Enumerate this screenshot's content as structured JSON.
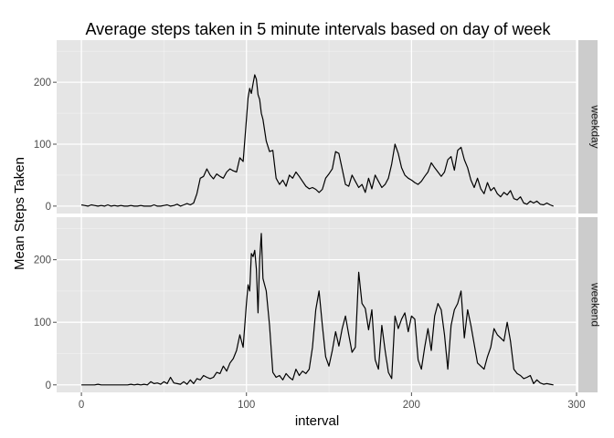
{
  "chart_data": {
    "type": "line",
    "title": "Average steps taken in 5 minute intervals based on day of week",
    "xlabel": "interval",
    "ylabel": "Mean Steps Taken",
    "xlim": [
      -15,
      300
    ],
    "ylim": [
      -12,
      268
    ],
    "x_ticks": [
      0,
      100,
      200,
      300
    ],
    "y_ticks": [
      0,
      100,
      200
    ],
    "grid": true,
    "facet_strip_position": "right",
    "line_color": "#000000",
    "panel_background": "#e5e5e5",
    "strip_background": "#cccccc",
    "panels": [
      {
        "label": "weekday",
        "x": [
          0,
          2,
          4,
          6,
          8,
          10,
          12,
          14,
          16,
          18,
          20,
          22,
          24,
          26,
          28,
          30,
          32,
          34,
          36,
          38,
          40,
          42,
          44,
          46,
          48,
          50,
          52,
          54,
          56,
          58,
          60,
          62,
          64,
          66,
          68,
          70,
          72,
          74,
          76,
          78,
          80,
          82,
          84,
          86,
          88,
          90,
          92,
          94,
          96,
          98,
          100,
          101,
          102,
          103,
          104,
          105,
          106,
          107,
          108,
          109,
          110,
          112,
          114,
          116,
          118,
          120,
          122,
          124,
          126,
          128,
          130,
          132,
          134,
          136,
          138,
          140,
          142,
          144,
          146,
          148,
          150,
          152,
          154,
          156,
          158,
          160,
          162,
          164,
          166,
          168,
          170,
          172,
          174,
          176,
          178,
          180,
          182,
          184,
          186,
          188,
          190,
          192,
          194,
          196,
          198,
          200,
          202,
          204,
          206,
          208,
          210,
          212,
          214,
          216,
          218,
          220,
          222,
          224,
          226,
          228,
          230,
          232,
          234,
          236,
          238,
          240,
          242,
          244,
          246,
          248,
          250,
          252,
          254,
          256,
          258,
          260,
          262,
          264,
          266,
          268,
          270,
          272,
          274,
          276,
          278,
          280,
          282,
          284,
          286
        ],
        "y": [
          2,
          1,
          0,
          2,
          1,
          0,
          1,
          0,
          2,
          0,
          1,
          0,
          1,
          0,
          0,
          1,
          0,
          0,
          1,
          0,
          0,
          0,
          2,
          0,
          0,
          1,
          2,
          0,
          1,
          3,
          0,
          2,
          4,
          2,
          5,
          20,
          45,
          48,
          60,
          50,
          44,
          52,
          48,
          45,
          55,
          60,
          57,
          55,
          78,
          72,
          140,
          175,
          190,
          182,
          198,
          212,
          205,
          180,
          172,
          150,
          140,
          105,
          88,
          90,
          45,
          35,
          42,
          32,
          50,
          45,
          55,
          48,
          40,
          32,
          28,
          30,
          27,
          22,
          27,
          45,
          52,
          60,
          88,
          85,
          60,
          35,
          32,
          50,
          40,
          30,
          35,
          22,
          45,
          28,
          50,
          40,
          30,
          35,
          45,
          68,
          100,
          85,
          62,
          50,
          45,
          42,
          38,
          35,
          40,
          48,
          55,
          70,
          62,
          55,
          48,
          55,
          75,
          80,
          58,
          90,
          95,
          75,
          62,
          42,
          30,
          45,
          28,
          20,
          38,
          25,
          30,
          20,
          15,
          22,
          18,
          25,
          12,
          10,
          15,
          5,
          3,
          8,
          5,
          8,
          3,
          2,
          5,
          2,
          0
        ]
      },
      {
        "label": "weekend",
        "x": [
          0,
          2,
          4,
          6,
          8,
          10,
          12,
          14,
          16,
          18,
          20,
          22,
          24,
          26,
          28,
          30,
          32,
          34,
          36,
          38,
          40,
          42,
          44,
          46,
          48,
          50,
          52,
          54,
          56,
          58,
          60,
          62,
          64,
          66,
          68,
          70,
          72,
          74,
          76,
          78,
          80,
          82,
          84,
          86,
          88,
          90,
          92,
          94,
          96,
          98,
          100,
          101,
          102,
          103,
          104,
          105,
          106,
          107,
          108,
          109,
          110,
          112,
          114,
          116,
          118,
          120,
          122,
          124,
          126,
          128,
          130,
          132,
          134,
          136,
          138,
          140,
          142,
          144,
          146,
          148,
          150,
          152,
          154,
          156,
          158,
          160,
          162,
          164,
          166,
          168,
          170,
          172,
          174,
          176,
          178,
          180,
          182,
          184,
          186,
          188,
          190,
          192,
          194,
          196,
          198,
          200,
          202,
          204,
          206,
          208,
          210,
          212,
          214,
          216,
          218,
          220,
          222,
          224,
          226,
          228,
          230,
          232,
          234,
          236,
          238,
          240,
          242,
          244,
          246,
          248,
          250,
          252,
          254,
          256,
          258,
          260,
          262,
          264,
          266,
          268,
          270,
          272,
          274,
          276,
          278,
          280,
          282,
          284,
          286
        ],
        "y": [
          0,
          0,
          0,
          0,
          0,
          1,
          0,
          0,
          0,
          0,
          0,
          0,
          0,
          0,
          0,
          1,
          0,
          1,
          0,
          1,
          0,
          5,
          2,
          3,
          1,
          5,
          2,
          12,
          3,
          2,
          1,
          5,
          1,
          8,
          2,
          10,
          8,
          15,
          12,
          10,
          12,
          20,
          18,
          30,
          22,
          35,
          42,
          55,
          80,
          60,
          130,
          160,
          150,
          210,
          205,
          215,
          185,
          115,
          200,
          242,
          170,
          150,
          95,
          20,
          12,
          15,
          8,
          18,
          12,
          8,
          25,
          15,
          22,
          18,
          25,
          60,
          120,
          150,
          95,
          45,
          30,
          55,
          85,
          62,
          90,
          110,
          80,
          52,
          60,
          180,
          130,
          122,
          88,
          120,
          40,
          25,
          95,
          55,
          20,
          10,
          110,
          90,
          105,
          115,
          85,
          110,
          105,
          40,
          25,
          60,
          90,
          55,
          110,
          130,
          120,
          80,
          25,
          95,
          120,
          130,
          150,
          75,
          120,
          95,
          65,
          35,
          30,
          25,
          45,
          60,
          90,
          80,
          75,
          70,
          100,
          70,
          25,
          18,
          15,
          10,
          12,
          15,
          2,
          8,
          3,
          1,
          2,
          1,
          0
        ]
      }
    ]
  }
}
